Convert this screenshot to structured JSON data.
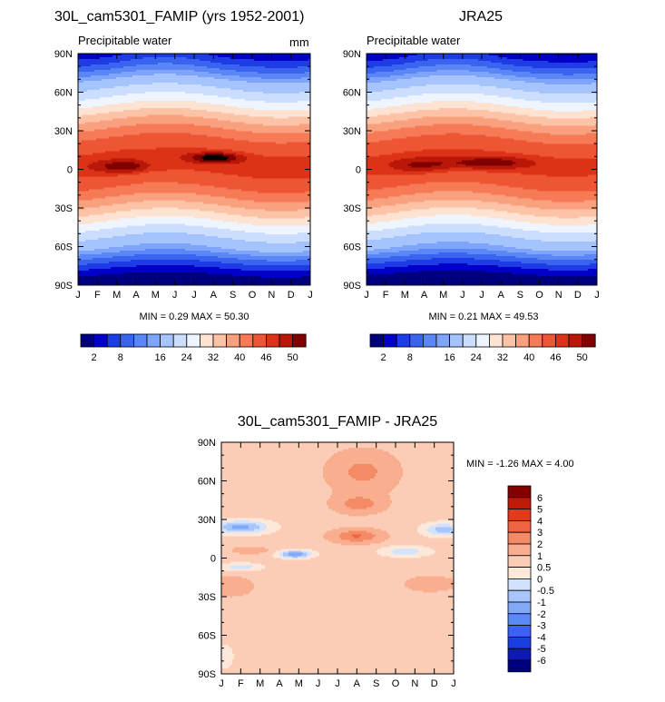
{
  "months": [
    "J",
    "F",
    "M",
    "A",
    "M",
    "J",
    "J",
    "A",
    "S",
    "O",
    "N",
    "D",
    "J"
  ],
  "lat_ticks": [
    "90N",
    "60N",
    "30N",
    "0",
    "30S",
    "60S",
    "90S"
  ],
  "palette_main": [
    "#00007f",
    "#0000c8",
    "#1e3ce6",
    "#3a64f0",
    "#5a87f5",
    "#7ea5fa",
    "#a5c3fc",
    "#cbdefd",
    "#eef5ff",
    "#fee3d3",
    "#fdc3a6",
    "#f9a07e",
    "#f57a55",
    "#ee5535",
    "#dc3218",
    "#b91808",
    "#800000"
  ],
  "palette_diff": [
    "#00007f",
    "#0c18b8",
    "#1a3ee0",
    "#3a64f0",
    "#5c8af5",
    "#82a8f8",
    "#a8c6fb",
    "#d2e3fd",
    "#fde8da",
    "#fccdb6",
    "#f9ae8f",
    "#f58a67",
    "#ef6242",
    "#e03a1f",
    "#bf1b08",
    "#840000"
  ],
  "left_panel": {
    "title": "30L_cam5301_FAMIP (yrs 1952-2001)",
    "subtitle": "Precipitable water",
    "units": "mm",
    "stat": "MIN =   0.29 MAX =  50.30",
    "min": 0.29,
    "max": 50.3
  },
  "right_panel": {
    "title": "JRA25",
    "subtitle": "Precipitable water",
    "stat": "MIN =   0.21 MAX =  49.53",
    "min": 0.21,
    "max": 49.53
  },
  "colorbar_labels": [
    "2",
    "8",
    "16",
    "24",
    "32",
    "40",
    "46",
    "50"
  ],
  "diff_panel": {
    "title": "30L_cam5301_FAMIP - JRA25",
    "stat": "MIN =  -1.26 MAX =    4.00",
    "min": -1.26,
    "max": 4.0
  },
  "diff_colorbar_labels": [
    "6",
    "5",
    "4",
    "3",
    "2",
    "1",
    "0.5",
    "0",
    "-0.5",
    "-1",
    "-2",
    "-3",
    "-4",
    "-5",
    "-6"
  ],
  "chart_data": [
    {
      "type": "heatmap",
      "title": "30L_cam5301_FAMIP (yrs 1952-2001)",
      "subtitle": "Precipitable water",
      "units": "mm",
      "x": [
        "J",
        "F",
        "M",
        "A",
        "M",
        "J",
        "J",
        "A",
        "S",
        "O",
        "N",
        "D",
        "J"
      ],
      "y": [
        "90N",
        "60N",
        "30N",
        "0",
        "30S",
        "60S",
        "90S"
      ],
      "levels": [
        2,
        4,
        6,
        8,
        10,
        12,
        16,
        20,
        24,
        28,
        32,
        36,
        40,
        44,
        46,
        48,
        50
      ],
      "min": 0.29,
      "max": 50.3
    },
    {
      "type": "heatmap",
      "title": "JRA25",
      "subtitle": "Precipitable water",
      "x": [
        "J",
        "F",
        "M",
        "A",
        "M",
        "J",
        "J",
        "A",
        "S",
        "O",
        "N",
        "D",
        "J"
      ],
      "y": [
        "90N",
        "60N",
        "30N",
        "0",
        "30S",
        "60S",
        "90S"
      ],
      "levels": [
        2,
        4,
        6,
        8,
        10,
        12,
        16,
        20,
        24,
        28,
        32,
        36,
        40,
        44,
        46,
        48,
        50
      ],
      "min": 0.21,
      "max": 49.53
    },
    {
      "type": "heatmap",
      "title": "30L_cam5301_FAMIP - JRA25",
      "x": [
        "J",
        "F",
        "M",
        "A",
        "M",
        "J",
        "J",
        "A",
        "S",
        "O",
        "N",
        "D",
        "J"
      ],
      "y": [
        "90N",
        "60N",
        "30N",
        "0",
        "30S",
        "60S",
        "90S"
      ],
      "levels": [
        -6,
        -5,
        -4,
        -3,
        -2,
        -1,
        -0.5,
        0,
        0.5,
        1,
        2,
        3,
        4,
        5,
        6
      ],
      "min": -1.26,
      "max": 4.0
    }
  ]
}
